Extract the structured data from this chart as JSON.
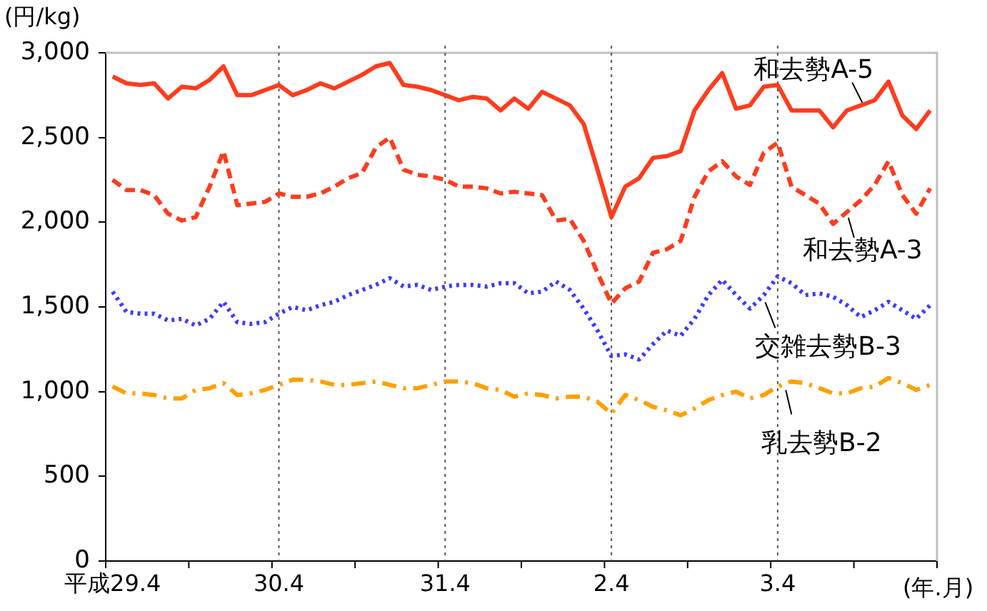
{
  "chart_data": {
    "type": "line",
    "ylabel": "(円/kg)",
    "xlabel": "(年.月)",
    "categories": [
      "平成29.4",
      null,
      null,
      null,
      null,
      null,
      null,
      null,
      null,
      null,
      null,
      null,
      "30.4",
      null,
      null,
      null,
      null,
      null,
      null,
      null,
      null,
      null,
      null,
      null,
      "31.4",
      null,
      null,
      null,
      null,
      null,
      null,
      null,
      null,
      null,
      null,
      null,
      "2.4",
      null,
      null,
      null,
      null,
      null,
      null,
      null,
      null,
      null,
      null,
      null,
      "3.4",
      null,
      null,
      null,
      null,
      null,
      null,
      null,
      null,
      null,
      null,
      null
    ],
    "series": [
      {
        "name": "和去勢A-5",
        "color": "#ff3c1e",
        "line_style": "solid",
        "values": [
          2860,
          2820,
          2810,
          2820,
          2730,
          2800,
          2790,
          2840,
          2920,
          2750,
          2750,
          2780,
          2810,
          2750,
          2780,
          2820,
          2790,
          2830,
          2870,
          2920,
          2940,
          2810,
          2800,
          2780,
          2750,
          2720,
          2740,
          2730,
          2660,
          2730,
          2670,
          2770,
          2730,
          2690,
          2580,
          2310,
          2030,
          2210,
          2260,
          2380,
          2390,
          2420,
          2660,
          2780,
          2880,
          2670,
          2690,
          2800,
          2810,
          2660,
          2660,
          2660,
          2560,
          2660,
          2690,
          2720,
          2830,
          2630,
          2550,
          2660
        ]
      },
      {
        "name": "和去勢A-3",
        "color": "#ff3c1e",
        "line_style": "dashed",
        "values": [
          2250,
          2190,
          2190,
          2160,
          2050,
          2010,
          2030,
          2210,
          2420,
          2100,
          2110,
          2120,
          2170,
          2150,
          2150,
          2170,
          2210,
          2260,
          2290,
          2440,
          2500,
          2310,
          2280,
          2270,
          2250,
          2210,
          2210,
          2200,
          2170,
          2180,
          2170,
          2160,
          2010,
          2020,
          1890,
          1700,
          1520,
          1610,
          1650,
          1820,
          1840,
          1890,
          2150,
          2300,
          2360,
          2270,
          2220,
          2410,
          2470,
          2210,
          2160,
          2110,
          1990,
          2060,
          2130,
          2220,
          2360,
          2160,
          2050,
          2200
        ]
      },
      {
        "name": "交雑去勢B-3",
        "color": "#3c3cff",
        "line_style": "dotted",
        "values": [
          1590,
          1470,
          1460,
          1460,
          1420,
          1430,
          1390,
          1430,
          1530,
          1410,
          1400,
          1410,
          1460,
          1500,
          1480,
          1510,
          1530,
          1570,
          1600,
          1630,
          1670,
          1620,
          1630,
          1600,
          1620,
          1630,
          1630,
          1620,
          1640,
          1640,
          1580,
          1590,
          1650,
          1600,
          1490,
          1360,
          1210,
          1220,
          1190,
          1280,
          1360,
          1330,
          1430,
          1570,
          1660,
          1570,
          1490,
          1570,
          1680,
          1640,
          1570,
          1580,
          1560,
          1510,
          1440,
          1480,
          1530,
          1480,
          1430,
          1510
        ]
      },
      {
        "name": "乳去勢B-2",
        "color": "#ffa000",
        "line_style": "dashdot",
        "values": [
          1030,
          990,
          990,
          980,
          960,
          960,
          1010,
          1020,
          1050,
          980,
          990,
          1010,
          1040,
          1070,
          1070,
          1060,
          1040,
          1040,
          1050,
          1060,
          1040,
          1020,
          1020,
          1040,
          1060,
          1060,
          1050,
          1020,
          1010,
          970,
          990,
          980,
          960,
          970,
          970,
          940,
          870,
          980,
          950,
          910,
          890,
          860,
          900,
          950,
          980,
          1000,
          960,
          980,
          1030,
          1060,
          1050,
          1020,
          990,
          990,
          1020,
          1030,
          1080,
          1050,
          1010,
          1040
        ]
      }
    ],
    "ylim": [
      0,
      3000
    ],
    "yticks": [
      0,
      500,
      {
        "value": 1000,
        "label": "1,000"
      },
      {
        "value": 1500,
        "label": "1,500"
      },
      {
        "value": 2000,
        "label": "2,000"
      },
      {
        "value": 2500,
        "label": "2,500"
      },
      {
        "value": 3000,
        "label": "3,000"
      }
    ],
    "ref_lines": [
      {
        "axis": "x",
        "value": "30.4",
        "line_style": "dotted",
        "color": "#555555"
      },
      {
        "axis": "x",
        "value": "31.4",
        "line_style": "dotted",
        "color": "#555555"
      },
      {
        "axis": "x",
        "value": "2.4",
        "line_style": "dotted",
        "color": "#555555"
      },
      {
        "axis": "x",
        "value": "3.4",
        "line_style": "dotted",
        "color": "#555555"
      }
    ],
    "grid": false,
    "legend": false,
    "marker": "none"
  }
}
